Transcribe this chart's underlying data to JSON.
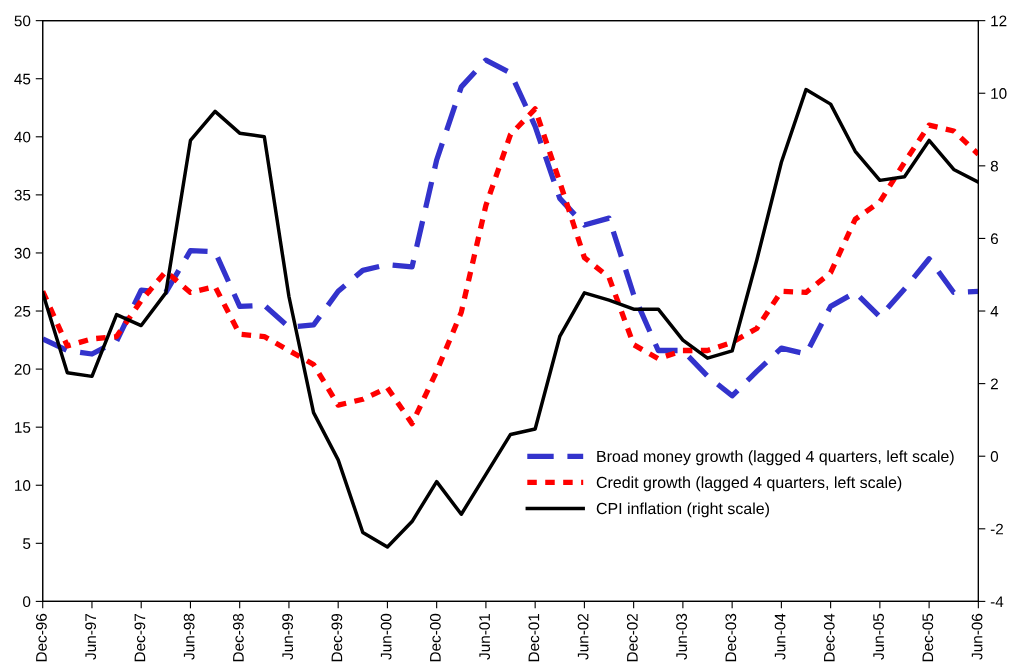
{
  "chart_data": {
    "type": "line",
    "categories": [
      "Dec-96",
      null,
      "Jun-97",
      null,
      "Dec-97",
      null,
      "Jun-98",
      null,
      "Dec-98",
      null,
      "Jun-99",
      null,
      "Dec-99",
      null,
      "Jun-00",
      null,
      "Dec-00",
      null,
      "Jun-01",
      null,
      "Dec-01",
      null,
      "Jun-02",
      null,
      "Dec-02",
      null,
      "Jun-03",
      null,
      "Dec-03",
      null,
      "Jun-04",
      null,
      "Dec-04",
      null,
      "Jun-05",
      null,
      "Dec-05",
      null,
      "Jun-06"
    ],
    "series": [
      {
        "name": "Broad money growth (lagged 4 quarters, left scale)",
        "color": "#3333cc",
        "line_style": "dashed",
        "axis": "y",
        "values": [
          22.6,
          21.6,
          21.3,
          22.4,
          26.8,
          26.6,
          30.2,
          30.1,
          25.4,
          25.5,
          23.6,
          23.8,
          26.7,
          28.5,
          29.0,
          28.8,
          38.0,
          44.3,
          46.6,
          45.5,
          40.9,
          34.7,
          32.4,
          33.0,
          26.4,
          21.6,
          21.6,
          19.4,
          17.7,
          19.8,
          21.8,
          21.3,
          25.4,
          26.6,
          24.5,
          26.9,
          29.5,
          26.6,
          26.7
        ]
      },
      {
        "name": "Credit growth (lagged 4 quarters, left scale)",
        "color": "#ff0000",
        "line_style": "dotted",
        "axis": "y",
        "values": [
          26.7,
          22.0,
          22.6,
          22.8,
          25.9,
          28.4,
          26.6,
          27.1,
          23.0,
          22.8,
          21.6,
          20.4,
          16.9,
          17.4,
          18.4,
          15.3,
          19.8,
          24.9,
          34.1,
          40.2,
          42.4,
          36.1,
          29.6,
          27.9,
          22.1,
          20.9,
          21.6,
          21.6,
          22.3,
          23.5,
          26.7,
          26.6,
          28.3,
          32.9,
          34.4,
          37.8,
          41.0,
          40.5,
          38.5
        ]
      },
      {
        "name": "CPI inflation (right scale)",
        "color": "#000000",
        "line_style": "solid",
        "axis": "y2",
        "values": [
          4.5,
          2.3,
          2.2,
          3.9,
          3.6,
          4.5,
          8.7,
          9.5,
          8.9,
          8.8,
          4.4,
          1.2,
          -0.1,
          -2.1,
          -2.5,
          -1.8,
          -0.7,
          -1.6,
          -0.5,
          0.6,
          0.75,
          3.3,
          4.5,
          4.3,
          4.05,
          4.05,
          3.2,
          2.7,
          2.9,
          5.4,
          8.1,
          10.1,
          9.7,
          8.4,
          7.6,
          7.7,
          8.7,
          7.9,
          7.55
        ]
      }
    ],
    "ylim": [
      0,
      50
    ],
    "yticks": [
      0,
      5,
      10,
      15,
      20,
      25,
      30,
      35,
      40,
      45,
      50
    ],
    "y2lim": [
      -4,
      12
    ],
    "y2ticks": [
      -4,
      -2,
      0,
      2,
      4,
      6,
      8,
      10,
      12
    ],
    "legend": "bottom right",
    "grid": false,
    "marker": "none"
  }
}
